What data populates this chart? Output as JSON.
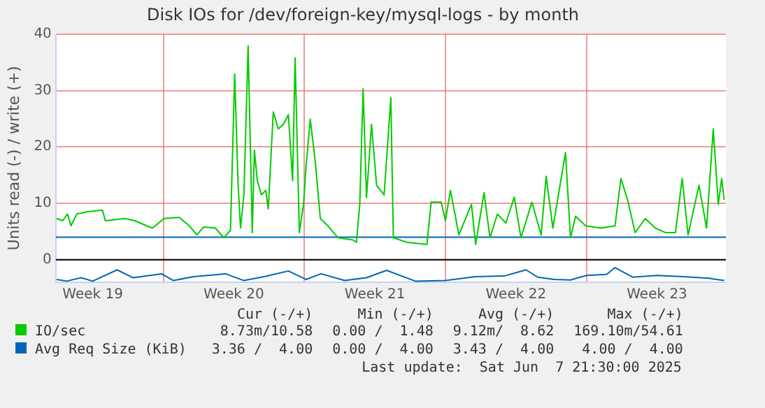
{
  "chart_data": {
    "type": "line",
    "title": "Disk IOs for /dev/foreign-key/mysql-logs - by month",
    "ylabel": "Units read (-) / write (+)",
    "xlim": [
      "2025-05-05T16:00",
      "2025-06-07T22:00"
    ],
    "xticks": [
      {
        "value": "2025-05-07T12:00",
        "label": "Week 19"
      },
      {
        "value": "2025-05-11T00:00",
        "label": null
      },
      {
        "value": "2025-05-14T12:00",
        "label": "Week 20"
      },
      {
        "value": "2025-05-18T00:00",
        "label": null
      },
      {
        "value": "2025-05-21T12:00",
        "label": "Week 21"
      },
      {
        "value": "2025-05-25T00:00",
        "label": null
      },
      {
        "value": "2025-05-28T12:00",
        "label": "Week 22"
      },
      {
        "value": "2025-06-01T00:00",
        "label": null
      },
      {
        "value": "2025-06-04T12:00",
        "label": "Week 23"
      }
    ],
    "ylim": [
      -4,
      40
    ],
    "yticks": [
      0,
      10,
      20,
      30,
      40
    ],
    "grid": true,
    "legend": "bottom",
    "marker": "none",
    "line_style": "solid",
    "ref_lines": [
      {
        "axis": "y",
        "value": 0,
        "color": "#000000"
      }
    ],
    "series": [
      {
        "name": "IO/sec",
        "color": "#00cc00",
        "x": [
          "2025-05-05T17:00",
          "2025-05-06T00:00",
          "2025-05-06T06:00",
          "2025-05-06T10:00",
          "2025-05-06T17:00",
          "2025-05-07T06:00",
          "2025-05-07T23:30",
          "2025-05-08T03:00",
          "2025-05-09T02:00",
          "2025-05-09T14:00",
          "2025-05-10T11:00",
          "2025-05-11T01:00",
          "2025-05-11T19:00",
          "2025-05-12T07:00",
          "2025-05-12T16:00",
          "2025-05-13T00:00",
          "2025-05-13T14:00",
          "2025-05-14T00:00",
          "2025-05-14T08:00",
          "2025-05-14T13:00",
          "2025-05-14T17:00",
          "2025-05-14T20:00",
          "2025-05-15T00:00",
          "2025-05-15T05:00",
          "2025-05-15T10:00",
          "2025-05-15T12:30",
          "2025-05-15T16:00",
          "2025-05-15T21:00",
          "2025-05-16T02:00",
          "2025-05-16T05:00",
          "2025-05-16T11:00",
          "2025-05-16T17:00",
          "2025-05-16T23:00",
          "2025-05-17T05:00",
          "2025-05-17T10:00",
          "2025-05-17T13:00",
          "2025-05-17T18:00",
          "2025-05-17T23:00",
          "2025-05-18T02:00",
          "2025-05-18T07:00",
          "2025-05-18T13:00",
          "2025-05-18T19:00",
          "2025-05-19T04:00",
          "2025-05-19T16:00",
          "2025-05-20T10:00",
          "2025-05-20T14:00",
          "2025-05-20T18:00",
          "2025-05-20T22:00",
          "2025-05-21T02:00",
          "2025-05-21T08:00",
          "2025-05-21T14:00",
          "2025-05-21T23:00",
          "2025-05-22T07:00",
          "2025-05-22T10:00",
          "2025-05-23T02:00",
          "2025-05-24T02:00",
          "2025-05-24T07:00",
          "2025-05-24T19:00",
          "2025-05-25T00:00",
          "2025-05-25T06:00",
          "2025-05-25T16:00",
          "2025-05-26T07:00",
          "2025-05-26T12:00",
          "2025-05-26T22:00",
          "2025-05-27T05:00",
          "2025-05-27T14:00",
          "2025-05-28T00:00",
          "2025-05-28T10:00",
          "2025-05-28T18:00",
          "2025-05-29T07:00",
          "2025-05-29T18:00",
          "2025-05-30T00:00",
          "2025-05-30T08:00",
          "2025-05-30T23:00",
          "2025-05-31T05:00",
          "2025-05-31T11:00",
          "2025-05-31T23:00",
          "2025-06-01T17:00",
          "2025-06-02T10:00",
          "2025-06-02T17:00",
          "2025-06-03T01:00",
          "2025-06-03T10:00",
          "2025-06-03T22:00",
          "2025-06-04T10:00",
          "2025-06-04T22:00",
          "2025-06-05T10:00",
          "2025-06-05T18:00",
          "2025-06-06T01:00",
          "2025-06-06T14:00",
          "2025-06-06T23:00",
          "2025-06-07T07:00",
          "2025-06-07T13:00",
          "2025-06-07T17:00",
          "2025-06-07T20:00"
        ],
        "values": [
          7.3,
          6.9,
          8.1,
          6.0,
          8.1,
          8.5,
          8.8,
          6.9,
          7.3,
          6.9,
          5.6,
          7.3,
          7.5,
          6.0,
          4.4,
          5.8,
          5.6,
          3.9,
          5.2,
          32.9,
          13.6,
          5.6,
          11.5,
          37.9,
          4.8,
          19.4,
          14,
          11.5,
          12.3,
          9,
          26.2,
          23.2,
          24,
          25.7,
          14,
          35.8,
          4.8,
          9.8,
          16.5,
          24.9,
          17.4,
          7.3,
          6.0,
          3.9,
          3.5,
          3.1,
          9.8,
          30.3,
          11,
          24,
          13.2,
          11.5,
          28.7,
          3.9,
          3.1,
          2.7,
          10.2,
          10.2,
          6.9,
          12.3,
          4.4,
          9.8,
          2.7,
          11.9,
          3.9,
          8.1,
          6.5,
          11.1,
          3.9,
          10.2,
          4.4,
          14.8,
          5.6,
          19,
          3.9,
          7.7,
          6.0,
          5.6,
          6.0,
          14.4,
          10.6,
          4.8,
          7.3,
          5.6,
          4.8,
          4.8,
          14.4,
          4.4,
          13.2,
          5.6,
          23.2,
          9.8,
          14.4,
          10.6
        ]
      },
      {
        "name": "Avg Req Size (KiB)",
        "color": "#0066b3",
        "x": [
          "2025-05-05T16:00",
          "2025-06-07T22:00"
        ],
        "values": [
          4,
          4
        ]
      },
      {
        "color": "#0066b3",
        "x": [
          "2025-05-05T17:00",
          "2025-05-06T05:00",
          "2025-05-06T22:00",
          "2025-05-07T12:00",
          "2025-05-08T17:00",
          "2025-05-09T12:00",
          "2025-05-10T22:00",
          "2025-05-11T12:00",
          "2025-05-12T12:00",
          "2025-05-14T02:00",
          "2025-05-15T00:00",
          "2025-05-16T00:00",
          "2025-05-17T05:00",
          "2025-05-18T02:00",
          "2025-05-18T20:00",
          "2025-05-20T00:00",
          "2025-05-21T02:00",
          "2025-05-22T02:00",
          "2025-05-23T12:00",
          "2025-05-25T00:00",
          "2025-05-26T12:00",
          "2025-05-27T22:00",
          "2025-05-29T00:00",
          "2025-05-29T14:00",
          "2025-05-30T10:00",
          "2025-05-31T05:00",
          "2025-06-01T00:00",
          "2025-06-02T00:00",
          "2025-06-02T10:00",
          "2025-06-03T07:00",
          "2025-06-04T12:00",
          "2025-06-05T19:00",
          "2025-06-07T02:00",
          "2025-06-07T20:00"
        ],
        "values": [
          -3.5,
          -3.8,
          -3.2,
          -3.8,
          -1.8,
          -3.2,
          -2.5,
          -3.7,
          -3.0,
          -2.5,
          -3.7,
          -3.0,
          -2.0,
          -3.5,
          -2.5,
          -3.7,
          -3.2,
          -1.9,
          -3.8,
          -3.7,
          -3.0,
          -2.9,
          -1.8,
          -3.1,
          -3.5,
          -3.6,
          -2.8,
          -2.6,
          -1.4,
          -3.1,
          -2.8,
          -3.0,
          -3.3,
          -3.7
        ]
      }
    ],
    "annotations": [
      "Cur (-/+)",
      "Min (-/+)",
      "Avg (-/+)",
      "Max (-/+)",
      "8.73m/10.58",
      "0.00 /  1.48",
      "9.12m/  8.62",
      "169.10m/54.61",
      "3.36 /  4.00",
      "0.00 /  4.00",
      "3.43 /  4.00",
      "4.00 /  4.00",
      "Last update:  Sat Jun  7 21:30:00 2025"
    ]
  }
}
